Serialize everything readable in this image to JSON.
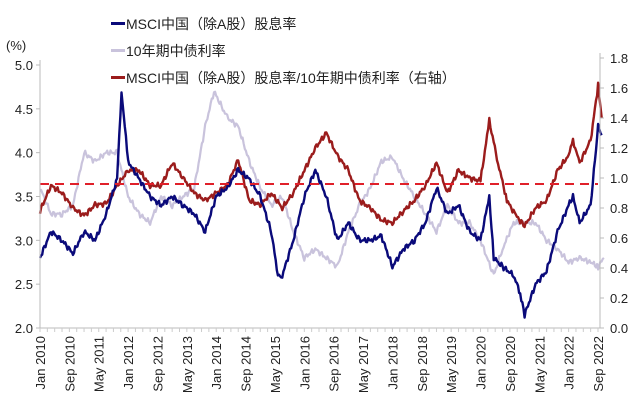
{
  "chart_data": {
    "type": "line",
    "title": "",
    "ylabel": "(%)",
    "left_ylim": [
      2.0,
      5.0
    ],
    "right_ylim": [
      0.0,
      1.8
    ],
    "left_ticks": [
      "2.0",
      "2.5",
      "3.0",
      "3.5",
      "4.0",
      "4.5",
      "5.0"
    ],
    "right_ticks": [
      "0.0",
      "0.2",
      "0.4",
      "0.6",
      "0.8",
      "1.0",
      "1.2",
      "1.4",
      "1.6",
      "1.8"
    ],
    "x_ticks": [
      "Jan 2010",
      "Sep 2010",
      "May 2011",
      "Jan 2012",
      "Sep 2012",
      "May 2013",
      "Jan 2014",
      "Sep 2014",
      "May 2015",
      "Jan 2016",
      "Sep 2016",
      "May 2017",
      "Jan 2018",
      "Sep 2018",
      "May 2019",
      "Jan 2020",
      "Sep 2020",
      "May 2021",
      "Jan 2022",
      "Sep 2022"
    ],
    "x_range": [
      2010.0,
      2022.8
    ],
    "grid": false,
    "legend_position": "top-center",
    "reference_line": {
      "axis": "right",
      "value": 0.96,
      "color": "#e0202a",
      "style": "dashed"
    },
    "series": [
      {
        "name": "MSCI中国（除A股）股息率",
        "axis": "left",
        "color": "#0a0a7a",
        "x": [
          2010.0,
          2010.25,
          2010.5,
          2010.75,
          2011.0,
          2011.25,
          2011.5,
          2011.75,
          2011.85,
          2012.0,
          2012.25,
          2012.5,
          2012.75,
          2013.0,
          2013.25,
          2013.5,
          2013.75,
          2014.0,
          2014.25,
          2014.5,
          2014.75,
          2015.0,
          2015.25,
          2015.4,
          2015.5,
          2015.75,
          2016.0,
          2016.25,
          2016.5,
          2016.75,
          2017.0,
          2017.25,
          2017.5,
          2017.75,
          2018.0,
          2018.25,
          2018.5,
          2018.75,
          2019.0,
          2019.25,
          2019.5,
          2019.75,
          2020.0,
          2020.2,
          2020.3,
          2020.5,
          2020.75,
          2020.9,
          2021.0,
          2021.25,
          2021.5,
          2021.75,
          2022.0,
          2022.1,
          2022.25,
          2022.5,
          2022.67,
          2022.75
        ],
        "values": [
          2.8,
          3.1,
          3.0,
          2.85,
          3.1,
          3.0,
          3.3,
          3.7,
          4.7,
          3.9,
          3.7,
          3.5,
          3.4,
          3.5,
          3.4,
          3.3,
          3.1,
          3.5,
          3.6,
          3.8,
          3.7,
          3.5,
          3.1,
          2.6,
          2.6,
          3.0,
          3.5,
          3.8,
          3.5,
          3.0,
          3.2,
          3.0,
          3.0,
          3.05,
          2.7,
          2.9,
          3.0,
          3.2,
          3.6,
          3.3,
          3.4,
          3.1,
          3.0,
          3.5,
          2.8,
          2.7,
          2.6,
          2.4,
          2.15,
          2.5,
          2.65,
          3.1,
          3.4,
          3.5,
          3.2,
          3.4,
          4.3,
          4.2
        ]
      },
      {
        "name": "10年期中债利率",
        "axis": "left",
        "color": "#c9c3dc",
        "x": [
          2010.0,
          2010.25,
          2010.5,
          2010.75,
          2011.0,
          2011.25,
          2011.5,
          2011.75,
          2012.0,
          2012.25,
          2012.5,
          2012.75,
          2013.0,
          2013.25,
          2013.5,
          2013.75,
          2013.95,
          2014.25,
          2014.5,
          2014.75,
          2015.0,
          2015.25,
          2015.5,
          2015.75,
          2016.0,
          2016.25,
          2016.5,
          2016.75,
          2017.0,
          2017.25,
          2017.5,
          2017.75,
          2018.0,
          2018.25,
          2018.5,
          2018.75,
          2019.0,
          2019.25,
          2019.5,
          2019.75,
          2020.0,
          2020.3,
          2020.5,
          2020.75,
          2021.0,
          2021.25,
          2021.5,
          2021.75,
          2022.0,
          2022.25,
          2022.5,
          2022.67,
          2022.8
        ],
        "values": [
          3.6,
          3.3,
          3.3,
          3.4,
          4.0,
          3.9,
          4.0,
          4.0,
          3.5,
          3.3,
          3.2,
          3.5,
          3.4,
          3.5,
          3.6,
          4.3,
          4.7,
          4.4,
          4.3,
          3.9,
          3.6,
          3.4,
          3.5,
          3.1,
          2.8,
          2.9,
          2.8,
          2.7,
          3.1,
          3.4,
          3.6,
          3.9,
          3.95,
          3.7,
          3.5,
          3.3,
          3.1,
          3.4,
          3.2,
          3.2,
          3.0,
          2.6,
          2.9,
          3.2,
          3.2,
          3.2,
          3.0,
          2.9,
          2.75,
          2.8,
          2.75,
          2.7,
          2.8
        ]
      },
      {
        "name": "MSCI中国（除A股）股息率/10年期中债利率（右轴）",
        "axis": "right",
        "color": "#9b1c1c",
        "x": [
          2010.0,
          2010.25,
          2010.5,
          2010.75,
          2011.0,
          2011.25,
          2011.5,
          2011.75,
          2012.0,
          2012.25,
          2012.5,
          2012.75,
          2013.0,
          2013.25,
          2013.5,
          2013.75,
          2014.0,
          2014.25,
          2014.5,
          2014.75,
          2015.0,
          2015.25,
          2015.5,
          2015.75,
          2016.0,
          2016.25,
          2016.5,
          2016.75,
          2017.0,
          2017.25,
          2017.5,
          2017.75,
          2018.0,
          2018.25,
          2018.5,
          2018.75,
          2019.0,
          2019.25,
          2019.5,
          2019.75,
          2020.0,
          2020.2,
          2020.4,
          2020.6,
          2020.8,
          2021.0,
          2021.25,
          2021.5,
          2021.75,
          2022.0,
          2022.1,
          2022.25,
          2022.5,
          2022.67,
          2022.75
        ],
        "values": [
          0.78,
          0.95,
          0.9,
          0.8,
          0.75,
          0.82,
          0.83,
          0.95,
          1.05,
          1.05,
          0.95,
          0.95,
          1.1,
          1.0,
          0.9,
          0.85,
          0.9,
          0.95,
          1.12,
          0.85,
          0.82,
          0.9,
          0.8,
          0.9,
          1.05,
          1.2,
          1.3,
          1.15,
          1.05,
          0.85,
          0.8,
          0.72,
          0.7,
          0.78,
          0.85,
          0.95,
          1.1,
          0.9,
          1.05,
          1.0,
          0.98,
          1.38,
          1.1,
          0.85,
          0.75,
          0.68,
          0.8,
          0.85,
          1.05,
          1.15,
          1.25,
          1.1,
          1.25,
          1.62,
          1.4
        ]
      }
    ]
  }
}
